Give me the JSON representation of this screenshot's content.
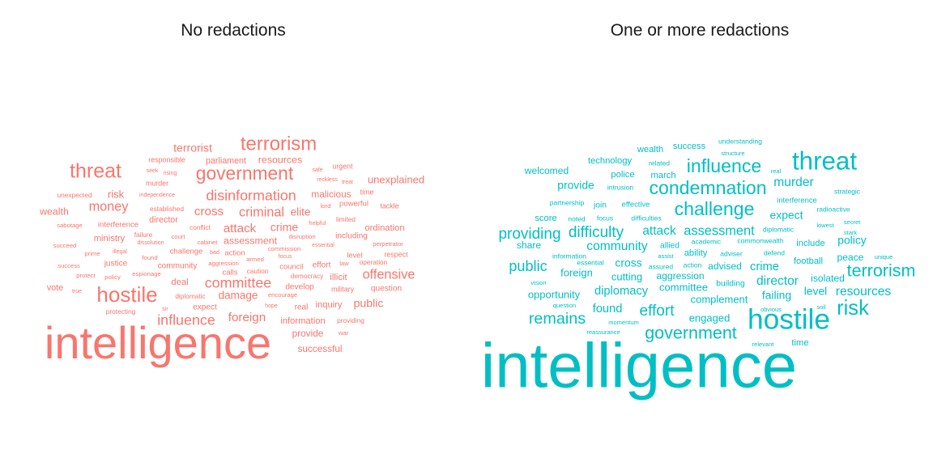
{
  "chart_data": [
    {
      "type": "wordcloud",
      "title": "No redactions",
      "color": "#F8766D",
      "words": [
        {
          "text": "intelligence",
          "weight": 100
        },
        {
          "text": "hostile",
          "weight": 42
        },
        {
          "text": "threat",
          "weight": 40
        },
        {
          "text": "terrorism",
          "weight": 38
        },
        {
          "text": "government",
          "weight": 36
        },
        {
          "text": "disinformation",
          "weight": 27
        },
        {
          "text": "committee",
          "weight": 27
        },
        {
          "text": "influence",
          "weight": 27
        },
        {
          "text": "criminal",
          "weight": 24
        },
        {
          "text": "money",
          "weight": 24
        },
        {
          "text": "offensive",
          "weight": 24
        },
        {
          "text": "cross",
          "weight": 22
        },
        {
          "text": "attack",
          "weight": 22
        },
        {
          "text": "foreign",
          "weight": 22
        },
        {
          "text": "terrorist",
          "weight": 20
        },
        {
          "text": "crime",
          "weight": 20
        },
        {
          "text": "public",
          "weight": 20
        },
        {
          "text": "elite",
          "weight": 19
        },
        {
          "text": "damage",
          "weight": 19
        },
        {
          "text": "unexplained",
          "weight": 18
        },
        {
          "text": "risk",
          "weight": 18
        },
        {
          "text": "resources",
          "weight": 17
        },
        {
          "text": "assessment",
          "weight": 17
        },
        {
          "text": "wealth",
          "weight": 17
        },
        {
          "text": "malicious",
          "weight": 16
        },
        {
          "text": "provide",
          "weight": 16
        },
        {
          "text": "successful",
          "weight": 16
        },
        {
          "text": "deal",
          "weight": 15
        },
        {
          "text": "ministry",
          "weight": 15
        },
        {
          "text": "information",
          "weight": 15
        },
        {
          "text": "inquiry",
          "weight": 15
        },
        {
          "text": "ordination",
          "weight": 15
        },
        {
          "text": "illicit",
          "weight": 15
        },
        {
          "text": "parliament",
          "weight": 14
        },
        {
          "text": "director",
          "weight": 14
        },
        {
          "text": "vote",
          "weight": 14
        },
        {
          "text": "justice",
          "weight": 13
        },
        {
          "text": "community",
          "weight": 13
        },
        {
          "text": "question",
          "weight": 13
        },
        {
          "text": "including",
          "weight": 13
        },
        {
          "text": "effort",
          "weight": 13
        },
        {
          "text": "develop",
          "weight": 13
        },
        {
          "text": "real",
          "weight": 13
        },
        {
          "text": "expect",
          "weight": 13
        },
        {
          "text": "level",
          "weight": 12
        },
        {
          "text": "powerful",
          "weight": 12
        },
        {
          "text": "interference",
          "weight": 12
        },
        {
          "text": "challenge",
          "weight": 12
        },
        {
          "text": "action",
          "weight": 12
        },
        {
          "text": "calls",
          "weight": 12
        },
        {
          "text": "council",
          "weight": 12
        },
        {
          "text": "time",
          "weight": 11
        },
        {
          "text": "tackle",
          "weight": 11
        },
        {
          "text": "respect",
          "weight": 11
        },
        {
          "text": "murder",
          "weight": 11
        },
        {
          "text": "responsible",
          "weight": 11
        },
        {
          "text": "military",
          "weight": 11
        },
        {
          "text": "urgent",
          "weight": 11
        },
        {
          "text": "operation",
          "weight": 10
        },
        {
          "text": "limited",
          "weight": 10
        },
        {
          "text": "providing",
          "weight": 10
        },
        {
          "text": "conflict",
          "weight": 10
        },
        {
          "text": "failure",
          "weight": 10
        },
        {
          "text": "established",
          "weight": 10
        },
        {
          "text": "caution",
          "weight": 10
        },
        {
          "text": "protecting",
          "weight": 10
        },
        {
          "text": "diplomatic",
          "weight": 10
        },
        {
          "text": "democracy",
          "weight": 10
        },
        {
          "text": "unexpected",
          "weight": 10
        },
        {
          "text": "perpetrator",
          "weight": 9
        },
        {
          "text": "war",
          "weight": 9
        },
        {
          "text": "disruption",
          "weight": 9
        },
        {
          "text": "commission",
          "weight": 9
        },
        {
          "text": "armed",
          "weight": 9
        },
        {
          "text": "sabotage",
          "weight": 9
        },
        {
          "text": "policy",
          "weight": 9
        },
        {
          "text": "prime",
          "weight": 9
        },
        {
          "text": "protect",
          "weight": 9
        },
        {
          "text": "court",
          "weight": 9
        },
        {
          "text": "lord",
          "weight": 9
        },
        {
          "text": "encourage",
          "weight": 9
        },
        {
          "text": "aggression",
          "weight": 9
        },
        {
          "text": "espionage",
          "weight": 9
        },
        {
          "text": "cabinet",
          "weight": 9
        },
        {
          "text": "law",
          "weight": 9
        },
        {
          "text": "found",
          "weight": 9
        },
        {
          "text": "succeed",
          "weight": 9
        },
        {
          "text": "success",
          "weight": 9
        },
        {
          "text": "true",
          "weight": 8
        },
        {
          "text": "sir",
          "weight": 8
        },
        {
          "text": "hope",
          "weight": 8
        },
        {
          "text": "bad",
          "weight": 8
        },
        {
          "text": "helpful",
          "weight": 8
        },
        {
          "text": "essential",
          "weight": 8
        },
        {
          "text": "illegal",
          "weight": 8
        },
        {
          "text": "seek",
          "weight": 8
        },
        {
          "text": "rising",
          "weight": 8
        },
        {
          "text": "safe",
          "weight": 8
        },
        {
          "text": "reckless",
          "weight": 8
        },
        {
          "text": "treat",
          "weight": 8
        },
        {
          "text": "independence",
          "weight": 8
        },
        {
          "text": "dissolution",
          "weight": 8
        },
        {
          "text": "focus",
          "weight": 8
        }
      ]
    },
    {
      "type": "wordcloud",
      "title": "One or more redactions",
      "color": "#00BFC4",
      "words": [
        {
          "text": "intelligence",
          "weight": 100
        },
        {
          "text": "hostile",
          "weight": 45
        },
        {
          "text": "threat",
          "weight": 40
        },
        {
          "text": "risk",
          "weight": 33
        },
        {
          "text": "condemnation",
          "weight": 30
        },
        {
          "text": "influence",
          "weight": 30
        },
        {
          "text": "challenge",
          "weight": 30
        },
        {
          "text": "terrorism",
          "weight": 28
        },
        {
          "text": "government",
          "weight": 28
        },
        {
          "text": "remains",
          "weight": 26
        },
        {
          "text": "effort",
          "weight": 25
        },
        {
          "text": "providing",
          "weight": 25
        },
        {
          "text": "difficulty",
          "weight": 25
        },
        {
          "text": "public",
          "weight": 24
        },
        {
          "text": "assessment",
          "weight": 22
        },
        {
          "text": "murder",
          "weight": 21
        },
        {
          "text": "attack",
          "weight": 21
        },
        {
          "text": "community",
          "weight": 21
        },
        {
          "text": "director",
          "weight": 21
        },
        {
          "text": "resources",
          "weight": 21
        },
        {
          "text": "crime",
          "weight": 20
        },
        {
          "text": "diplomacy",
          "weight": 20
        },
        {
          "text": "found",
          "weight": 20
        },
        {
          "text": "failing",
          "weight": 19
        },
        {
          "text": "level",
          "weight": 19
        },
        {
          "text": "provide",
          "weight": 19
        },
        {
          "text": "expect",
          "weight": 19
        },
        {
          "text": "cross",
          "weight": 19
        },
        {
          "text": "policy",
          "weight": 19
        },
        {
          "text": "committee",
          "weight": 18
        },
        {
          "text": "complement",
          "weight": 18
        },
        {
          "text": "engaged",
          "weight": 18
        },
        {
          "text": "opportunity",
          "weight": 18
        },
        {
          "text": "foreign",
          "weight": 18
        },
        {
          "text": "cutting",
          "weight": 18
        },
        {
          "text": "welcomed",
          "weight": 17
        },
        {
          "text": "peace",
          "weight": 17
        },
        {
          "text": "isolated",
          "weight": 17
        },
        {
          "text": "share",
          "weight": 17
        },
        {
          "text": "aggression",
          "weight": 17
        },
        {
          "text": "advised",
          "weight": 17
        },
        {
          "text": "score",
          "weight": 16
        },
        {
          "text": "success",
          "weight": 16
        },
        {
          "text": "wealth",
          "weight": 16
        },
        {
          "text": "technology",
          "weight": 16
        },
        {
          "text": "police",
          "weight": 16
        },
        {
          "text": "march",
          "weight": 16
        },
        {
          "text": "ability",
          "weight": 16
        },
        {
          "text": "include",
          "weight": 16
        },
        {
          "text": "football",
          "weight": 16
        },
        {
          "text": "time",
          "weight": 16
        },
        {
          "text": "building",
          "weight": 15
        },
        {
          "text": "join",
          "weight": 15
        },
        {
          "text": "allied",
          "weight": 15
        },
        {
          "text": "effective",
          "weight": 14
        },
        {
          "text": "interference",
          "weight": 14
        },
        {
          "text": "understanding",
          "weight": 13
        },
        {
          "text": "radioactive",
          "weight": 13
        },
        {
          "text": "strategic",
          "weight": 13
        },
        {
          "text": "diplomatic",
          "weight": 13
        },
        {
          "text": "defend",
          "weight": 13
        },
        {
          "text": "adviser",
          "weight": 13
        },
        {
          "text": "academic",
          "weight": 13
        },
        {
          "text": "commonwealth",
          "weight": 13
        },
        {
          "text": "related",
          "weight": 13
        },
        {
          "text": "intrusion",
          "weight": 13
        },
        {
          "text": "difficulties",
          "weight": 13
        },
        {
          "text": "focus",
          "weight": 13
        },
        {
          "text": "noted",
          "weight": 13
        },
        {
          "text": "partnership",
          "weight": 13
        },
        {
          "text": "information",
          "weight": 13
        },
        {
          "text": "essential",
          "weight": 13
        },
        {
          "text": "assured",
          "weight": 13
        },
        {
          "text": "action",
          "weight": 13
        },
        {
          "text": "assist",
          "weight": 12
        },
        {
          "text": "vision",
          "weight": 12
        },
        {
          "text": "question",
          "weight": 12
        },
        {
          "text": "momentum",
          "weight": 12
        },
        {
          "text": "reassurance",
          "weight": 12
        },
        {
          "text": "relevant",
          "weight": 12
        },
        {
          "text": "obvious",
          "weight": 12
        },
        {
          "text": "soil",
          "weight": 12
        },
        {
          "text": "structure",
          "weight": 12
        },
        {
          "text": "real",
          "weight": 12
        },
        {
          "text": "lowest",
          "weight": 12
        },
        {
          "text": "secret",
          "weight": 12
        },
        {
          "text": "stark",
          "weight": 12
        },
        {
          "text": "unique",
          "weight": 12
        }
      ]
    }
  ]
}
